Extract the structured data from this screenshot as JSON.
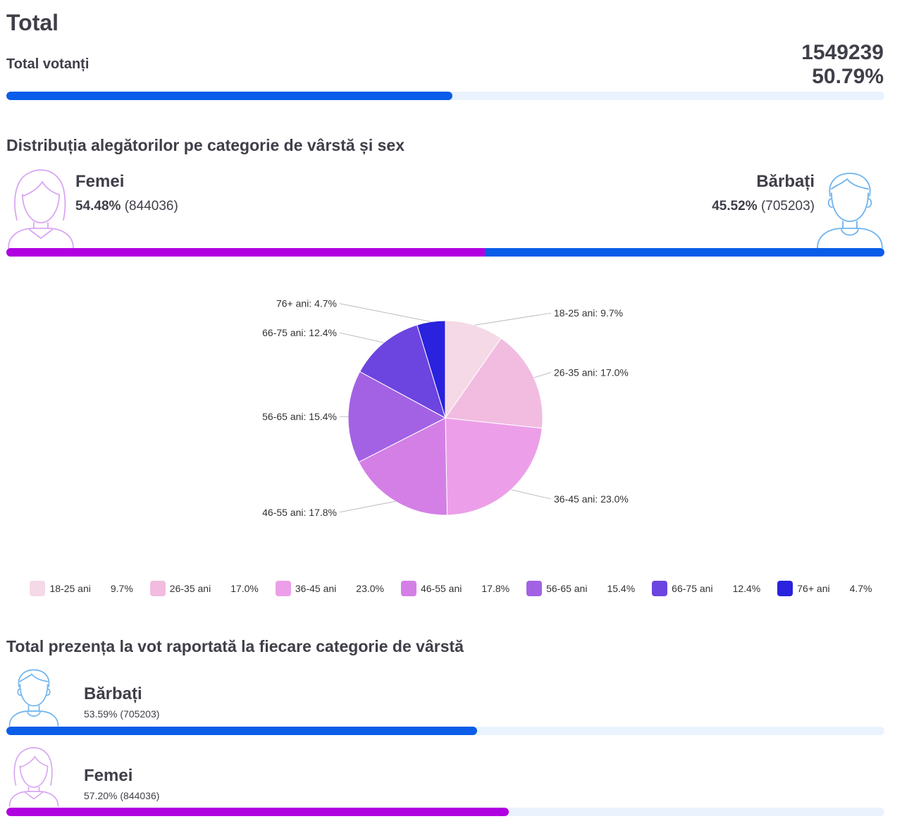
{
  "header": {
    "title": "Total",
    "voters_label": "Total votanți",
    "voters_count": "1549239",
    "voters_percent": "50.79%",
    "turnout_fill": 0.5079
  },
  "gender_section": {
    "title": "Distribuția alegătorilor pe categorie de vârstă și sex",
    "women": {
      "label": "Femei",
      "percent": "54.48%",
      "count": "(844036)"
    },
    "men": {
      "label": "Bărbați",
      "percent": "45.52%",
      "count": "(705203)"
    },
    "women_share": 0.5448
  },
  "colors": {
    "blue": "#0a5de8",
    "magenta": "#b100e0",
    "track": "#eaf2fd",
    "women_icon": "#d9a6f2",
    "men_icon": "#6fb3ee"
  },
  "chart_data": {
    "type": "pie",
    "categories": [
      "18-25 ani",
      "26-35 ani",
      "36-45 ani",
      "46-55 ani",
      "56-65 ani",
      "66-75 ani",
      "76+ ani"
    ],
    "values": [
      9.7,
      17.0,
      23.0,
      17.8,
      15.4,
      12.4,
      4.7
    ],
    "labels": [
      "18-25 ani: 9.7%",
      "26-35 ani: 17.0%",
      "36-45 ani: 23.0%",
      "46-55 ani: 17.8%",
      "56-65 ani: 15.4%",
      "66-75 ani: 12.4%",
      "76+ ani: 4.7%"
    ],
    "legend_values": [
      "9.7%",
      "17.0%",
      "23.0%",
      "17.8%",
      "15.4%",
      "12.4%",
      "4.7%"
    ],
    "colors": [
      "#f5d9e6",
      "#f1bce0",
      "#ec9fe8",
      "#d47fe6",
      "#a362e3",
      "#6c44e0",
      "#2a22dc"
    ],
    "legend_position": "bottom"
  },
  "turnout_section": {
    "title": "Total prezența la vot raportată la fiecare categorie de vârstă",
    "men": {
      "label": "Bărbați",
      "value": "53.59% (705203)",
      "fill": 0.5359
    },
    "women": {
      "label": "Femei",
      "value": "57.20% (844036)",
      "fill": 0.572
    }
  }
}
